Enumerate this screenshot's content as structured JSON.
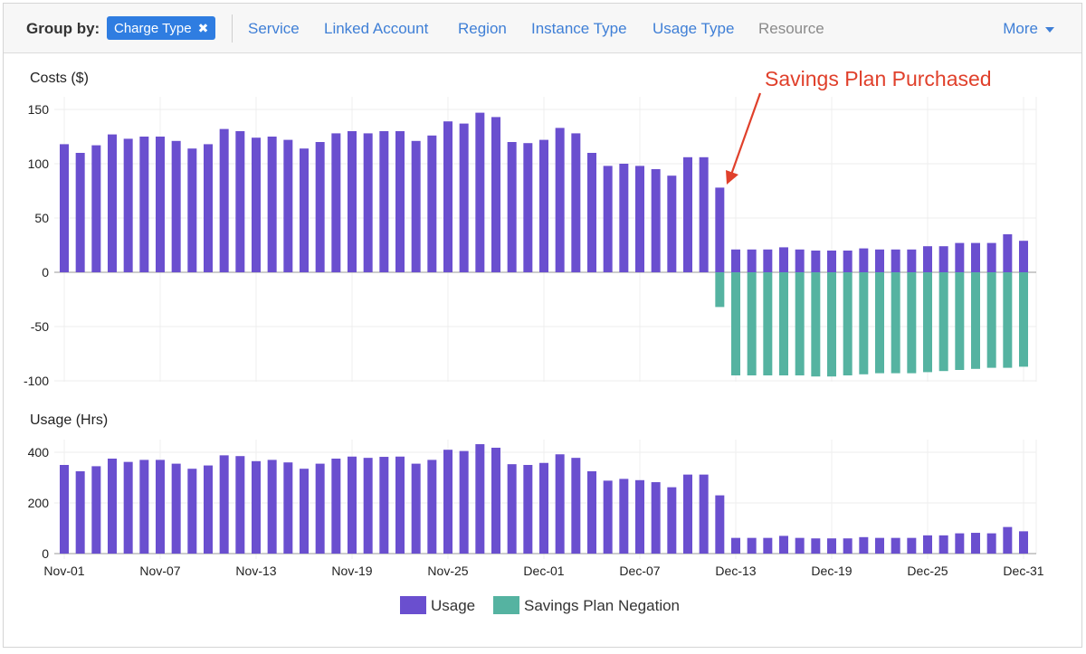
{
  "toolbar": {
    "group_label": "Group by:",
    "chip_label": "Charge Type",
    "tabs": [
      "Service",
      "Linked Account",
      "Region",
      "Instance Type",
      "Usage Type",
      "Resource"
    ],
    "more_label": "More"
  },
  "colors": {
    "usage": "#6a4fcf",
    "negation": "#55b3a1",
    "annotation": "#e0402b",
    "link": "#3f7fd6"
  },
  "annotation": "Savings Plan Purchased",
  "chart_data": [
    {
      "type": "bar",
      "title": "Costs ($)",
      "ylim": [
        -100,
        160
      ],
      "yticks": [
        150,
        100,
        50,
        0,
        -50,
        -100
      ],
      "x": [
        "Nov-01",
        "Nov-02",
        "Nov-03",
        "Nov-04",
        "Nov-05",
        "Nov-06",
        "Nov-07",
        "Nov-08",
        "Nov-09",
        "Nov-10",
        "Nov-11",
        "Nov-12",
        "Nov-13",
        "Nov-14",
        "Nov-15",
        "Nov-16",
        "Nov-17",
        "Nov-18",
        "Nov-19",
        "Nov-20",
        "Nov-21",
        "Nov-22",
        "Nov-23",
        "Nov-24",
        "Nov-25",
        "Nov-26",
        "Nov-27",
        "Nov-28",
        "Nov-29",
        "Nov-30",
        "Dec-01",
        "Dec-02",
        "Dec-03",
        "Dec-04",
        "Dec-05",
        "Dec-06",
        "Dec-07",
        "Dec-08",
        "Dec-09",
        "Dec-10",
        "Dec-11",
        "Dec-12",
        "Dec-13",
        "Dec-14",
        "Dec-15",
        "Dec-16",
        "Dec-17",
        "Dec-18",
        "Dec-19",
        "Dec-20",
        "Dec-21",
        "Dec-22",
        "Dec-23",
        "Dec-24",
        "Dec-25",
        "Dec-26",
        "Dec-27",
        "Dec-28",
        "Dec-29",
        "Dec-30",
        "Dec-31"
      ],
      "series": [
        {
          "name": "Usage",
          "values": [
            118,
            110,
            117,
            127,
            123,
            125,
            125,
            121,
            114,
            118,
            132,
            130,
            124,
            125,
            122,
            114,
            120,
            128,
            130,
            128,
            130,
            130,
            121,
            126,
            139,
            137,
            147,
            143,
            120,
            119,
            122,
            133,
            128,
            110,
            98,
            100,
            98,
            95,
            89,
            106,
            106,
            78,
            21,
            21,
            21,
            23,
            21,
            20,
            20,
            20,
            22,
            21,
            21,
            21,
            24,
            24,
            27,
            27,
            27,
            35,
            29
          ]
        },
        {
          "name": "Savings Plan Negation",
          "values": [
            0,
            0,
            0,
            0,
            0,
            0,
            0,
            0,
            0,
            0,
            0,
            0,
            0,
            0,
            0,
            0,
            0,
            0,
            0,
            0,
            0,
            0,
            0,
            0,
            0,
            0,
            0,
            0,
            0,
            0,
            0,
            0,
            0,
            0,
            0,
            0,
            0,
            0,
            0,
            0,
            0,
            -32,
            -95,
            -95,
            -95,
            -95,
            -95,
            -96,
            -96,
            -95,
            -94,
            -93,
            -93,
            -93,
            -92,
            -91,
            -90,
            -89,
            -88,
            -88,
            -87
          ]
        }
      ]
    },
    {
      "type": "bar",
      "title": "Usage (Hrs)",
      "ylim": [
        0,
        440
      ],
      "yticks": [
        400,
        200,
        0
      ],
      "x_tick_labels": [
        "Nov-01",
        "Nov-07",
        "Nov-13",
        "Nov-19",
        "Nov-25",
        "Dec-01",
        "Dec-07",
        "Dec-13",
        "Dec-19",
        "Dec-25",
        "Dec-31"
      ],
      "series": [
        {
          "name": "Usage",
          "values": [
            350,
            325,
            345,
            375,
            362,
            370,
            370,
            355,
            335,
            348,
            388,
            385,
            365,
            370,
            360,
            335,
            355,
            375,
            383,
            378,
            382,
            383,
            355,
            370,
            410,
            405,
            432,
            418,
            353,
            350,
            358,
            392,
            378,
            325,
            288,
            295,
            290,
            282,
            262,
            312,
            312,
            230,
            62,
            62,
            62,
            70,
            62,
            60,
            60,
            60,
            65,
            62,
            62,
            62,
            72,
            72,
            80,
            82,
            80,
            105,
            88
          ]
        }
      ]
    }
  ],
  "legend": [
    "Usage",
    "Savings Plan Negation"
  ]
}
